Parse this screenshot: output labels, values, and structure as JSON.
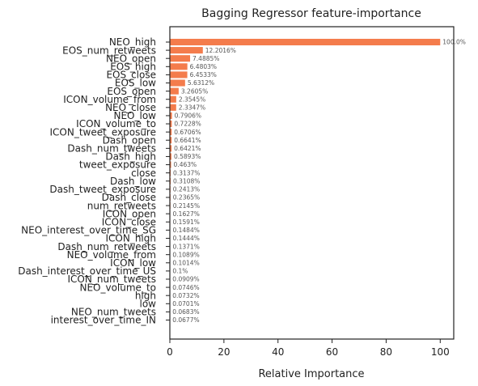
{
  "chart_data": {
    "type": "bar",
    "orientation": "horizontal",
    "title": "Bagging Regressor feature-importance",
    "xlabel": "Relative Importance",
    "ylabel": "",
    "xlim": [
      0,
      105
    ],
    "xticks": [
      0,
      20,
      40,
      60,
      80,
      100
    ],
    "grid": false,
    "bar_color": "#f47c4c",
    "categories": [
      "NEO_high",
      "EOS_num_retweets",
      "NEO_open",
      "EOS_high",
      "EOS_close",
      "EOS_low",
      "EOS_open",
      "ICON_volume_from",
      "NEO_close",
      "NEO_low",
      "ICON_volume_to",
      "ICON_tweet_exposure",
      "Dash_open",
      "Dash_num_tweets",
      "Dash_high",
      "tweet_exposure",
      "close",
      "Dash_low",
      "Dash_tweet_exposure",
      "Dash_close",
      "num_retweets",
      "ICON_open",
      "ICON_close",
      "NEO_interest_over_time_SG",
      "ICON_high",
      "Dash_num_retweets",
      "NEO_volume_from",
      "ICON_low",
      "Dash_interest_over_time_US",
      "ICON_num_tweets",
      "NEO_volume_to",
      "high",
      "low",
      "NEO_num_tweets",
      "interest_over_time_IN"
    ],
    "values": [
      100.0,
      12.2016,
      7.4885,
      6.4803,
      6.4533,
      5.6312,
      3.2605,
      2.3545,
      2.3347,
      0.7906,
      0.7228,
      0.6706,
      0.6641,
      0.6421,
      0.5893,
      0.463,
      0.3137,
      0.3108,
      0.2413,
      0.2365,
      0.2145,
      0.1627,
      0.1591,
      0.1484,
      0.1444,
      0.1371,
      0.1089,
      0.1014,
      0.1,
      0.0909,
      0.0746,
      0.0732,
      0.0701,
      0.0683,
      0.0677
    ],
    "value_labels": [
      "100.0%",
      "12.2016%",
      "7.4885%",
      "6.4803%",
      "6.4533%",
      "5.6312%",
      "3.2605%",
      "2.3545%",
      "2.3347%",
      "0.7906%",
      "0.7228%",
      "0.6706%",
      "0.6641%",
      "0.6421%",
      "0.5893%",
      "0.463%",
      "0.3137%",
      "0.3108%",
      "0.2413%",
      "0.2365%",
      "0.2145%",
      "0.1627%",
      "0.1591%",
      "0.1484%",
      "0.1444%",
      "0.1371%",
      "0.1089%",
      "0.1014%",
      "0.1%",
      "0.0909%",
      "0.0746%",
      "0.0732%",
      "0.0701%",
      "0.0683%",
      "0.0677%"
    ]
  }
}
